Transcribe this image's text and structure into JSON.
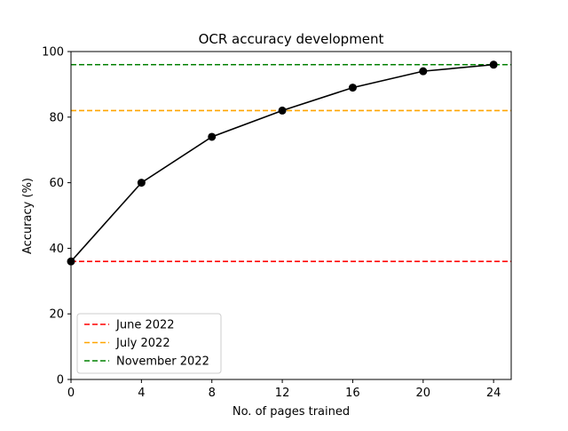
{
  "chart_data": {
    "type": "line",
    "title": "OCR accuracy development",
    "xlabel": "No. of pages trained",
    "ylabel": "Accuracy (%)",
    "xlim": [
      0,
      25
    ],
    "ylim": [
      0,
      100
    ],
    "xticks": [
      0,
      4,
      8,
      12,
      16,
      20,
      24
    ],
    "yticks": [
      0,
      20,
      40,
      60,
      80,
      100
    ],
    "grid": false,
    "legend_position": "lower-left",
    "series": [
      {
        "kind": "line-with-markers",
        "color": "#000000",
        "x": [
          0,
          4,
          8,
          12,
          16,
          20,
          24
        ],
        "y": [
          36,
          60,
          74,
          82,
          89,
          94,
          96
        ]
      }
    ],
    "reference_lines": [
      {
        "name": "June 2022",
        "y": 36,
        "color": "#ff0000",
        "style": "dashed"
      },
      {
        "name": "July 2022",
        "y": 82,
        "color": "#ffa500",
        "style": "dashed"
      },
      {
        "name": "November 2022",
        "y": 96,
        "color": "#008000",
        "style": "dashed"
      }
    ]
  }
}
